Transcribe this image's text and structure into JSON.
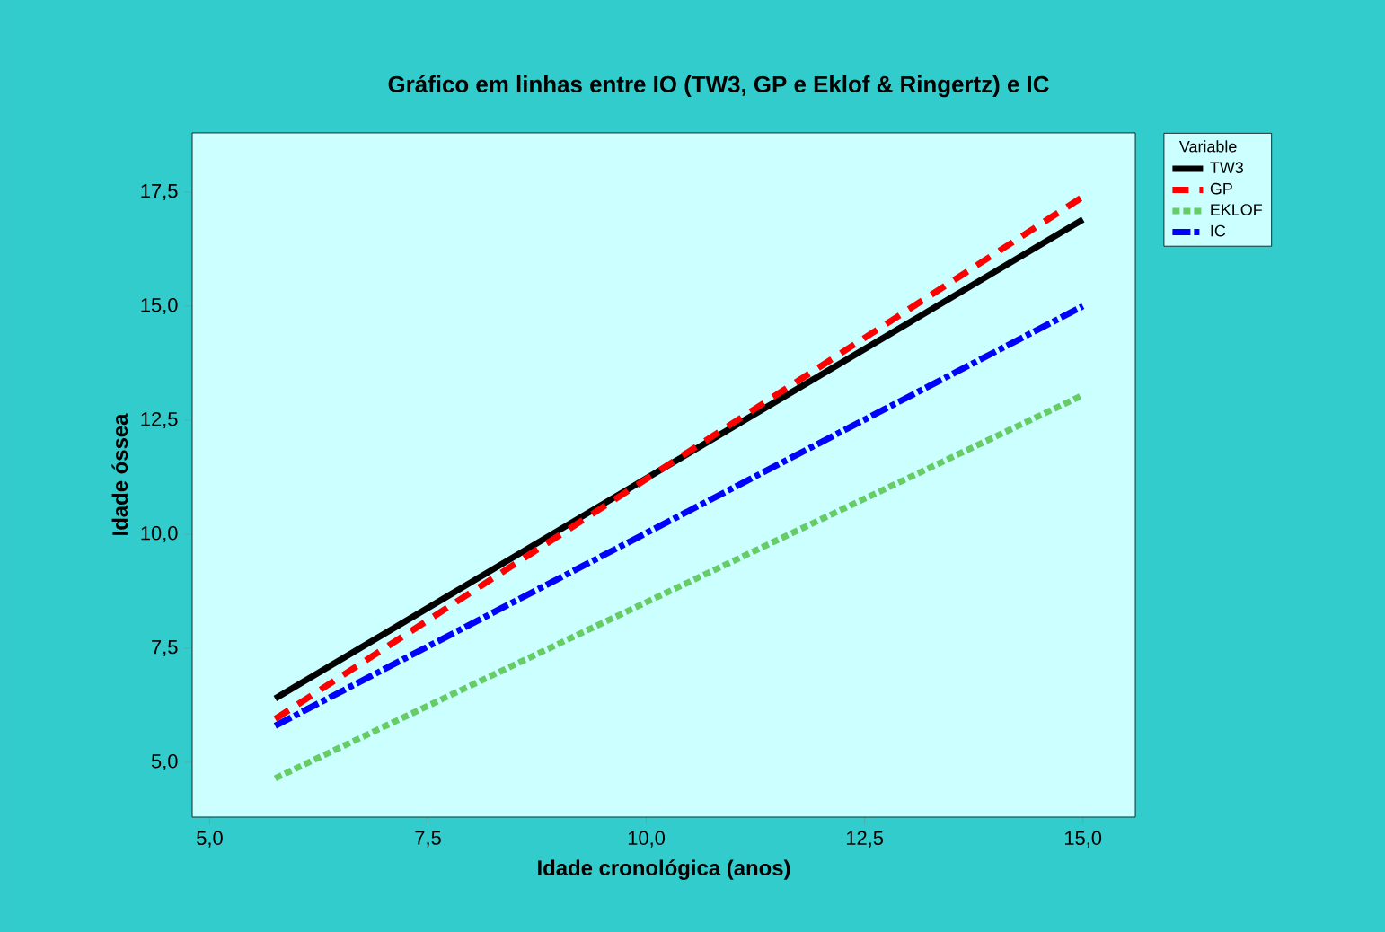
{
  "chart_data": {
    "type": "line",
    "title": "Gráfico em linhas entre IO (TW3, GP e Eklof & Ringertz) e IC",
    "xlabel": "Idade cronológica (anos)",
    "ylabel": "Idade óssea",
    "legend_title": "Variable",
    "legend": "top right",
    "xlim": [
      4.8,
      15.6
    ],
    "ylim": [
      3.8,
      18.8
    ],
    "xticks": [
      {
        "value": 5,
        "label": "5,0"
      },
      {
        "value": 7.5,
        "label": "7,5"
      },
      {
        "value": 10,
        "label": "10,0"
      },
      {
        "value": 12.5,
        "label": "12,5"
      },
      {
        "value": 15,
        "label": "15,0"
      }
    ],
    "yticks": [
      {
        "value": 5,
        "label": "5,0"
      },
      {
        "value": 7.5,
        "label": "7,5"
      },
      {
        "value": 10,
        "label": "10,0"
      },
      {
        "value": 12.5,
        "label": "12,5"
      },
      {
        "value": 15,
        "label": "15,0"
      },
      {
        "value": 17.5,
        "label": "17,5"
      }
    ],
    "x": [
      5.75,
      15
    ],
    "series": [
      {
        "name": "TW3",
        "color": "#000000",
        "line_style": "solid",
        "values": [
          6.4,
          16.9
        ]
      },
      {
        "name": "GP",
        "color": "#ff0000",
        "line_style": "dashed",
        "values": [
          5.95,
          17.4
        ]
      },
      {
        "name": "EKLOF",
        "color": "#66cc66",
        "line_style": "dotted",
        "values": [
          4.65,
          13.05
        ]
      },
      {
        "name": "IC",
        "color": "#0000ff",
        "line_style": "dashdot",
        "values": [
          5.8,
          15.0
        ]
      }
    ]
  }
}
